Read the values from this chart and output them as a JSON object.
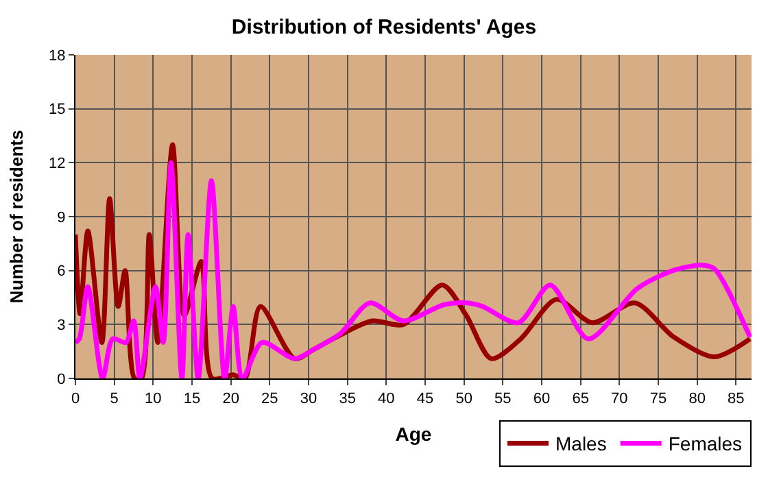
{
  "chart_data": {
    "type": "line",
    "title": "Distribution of Residents' Ages",
    "xlabel": "Age",
    "ylabel": "Number of residents",
    "xlim": [
      0,
      87
    ],
    "xticks": [
      0,
      5,
      10,
      15,
      20,
      25,
      30,
      35,
      40,
      45,
      50,
      55,
      60,
      65,
      70,
      75,
      80,
      85
    ],
    "ylim": [
      0,
      18
    ],
    "yticks": [
      0,
      3,
      6,
      9,
      12,
      15,
      18
    ],
    "grid": true,
    "legend": "bottom right",
    "marker": "none",
    "line_style": "solid",
    "series": [
      {
        "name": "Males",
        "color": "#990000",
        "x": [
          0,
          0.6,
          1.6,
          3.4,
          4.4,
          5.5,
          6.4,
          7.6,
          8.5,
          9.5,
          10.6,
          12.5,
          14,
          16.2,
          17.6,
          20.3,
          21.8,
          23.8,
          28.2,
          30.6,
          34,
          38.2,
          42.2,
          47.2,
          50.3,
          53.5,
          57.3,
          61.9,
          66.5,
          72,
          77,
          82.2,
          86.8
        ],
        "values": [
          8,
          3.6,
          8.2,
          2,
          10,
          4,
          6,
          0,
          0,
          8,
          2,
          13,
          3.5,
          6.5,
          0,
          0.2,
          0,
          4,
          1.1,
          1.6,
          2.4,
          3.2,
          3,
          5.2,
          3.5,
          1.1,
          2.2,
          4.4,
          3.1,
          4.2,
          2.3,
          1.2,
          2.2
        ]
      },
      {
        "name": "Females",
        "color": "#ff00ff",
        "x": [
          0,
          0.5,
          1.6,
          3.5,
          4.8,
          6.5,
          7.5,
          8.3,
          10.3,
          11.3,
          12.3,
          13.7,
          14.5,
          15.8,
          17.5,
          19.2,
          20.3,
          21.5,
          24,
          28.2,
          30.6,
          34.1,
          37.9,
          42.2,
          47.4,
          50.3,
          52.4,
          57,
          61.1,
          66,
          72.3,
          76.9,
          80.5,
          82.2,
          86.8
        ],
        "values": [
          2,
          2.2,
          5.1,
          0,
          2.2,
          2,
          3.2,
          0,
          5.1,
          2,
          12,
          0,
          8,
          0,
          11,
          0,
          4,
          0,
          2,
          1.1,
          1.6,
          2.5,
          4.2,
          3.2,
          4.1,
          4.2,
          4,
          3.1,
          5.2,
          2.2,
          5,
          6,
          6.3,
          6.1,
          2.3
        ]
      }
    ]
  }
}
